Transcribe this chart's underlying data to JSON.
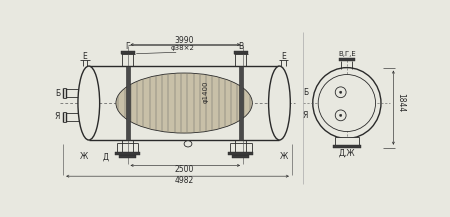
{
  "bg_color": "#e8e8e0",
  "line_color": "#2a2a2a",
  "dim_3990": "3990",
  "dim_2500": "2500",
  "dim_4982": "4982",
  "dim_1844": "1844",
  "dim_phi1400": "φ1400",
  "dim_phi38": "φ38×2",
  "label_E": "Е",
  "label_G": "Г",
  "label_B": "В",
  "label_Bh": "Б",
  "label_A": "Я",
  "label_Zh": "Ж",
  "label_D": "Д",
  "label_VGE": "В,Г,Е",
  "label_DZh": "Д,Ж"
}
